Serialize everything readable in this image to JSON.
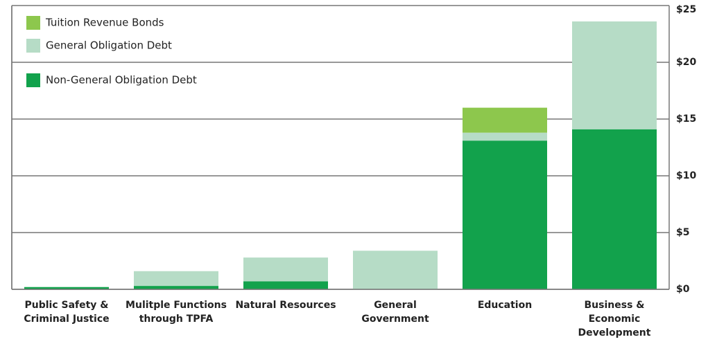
{
  "chart_data": {
    "type": "stacked_bar",
    "categories": [
      "Public Safety & Criminal Justice",
      "Mulitple Functions through TPFA",
      "Natural Resources",
      "General Government",
      "Education",
      "Business & Economic Development"
    ],
    "series": [
      {
        "name": "Non-General Obligation Debt",
        "color": "#12a24c",
        "values": [
          0.2,
          0.3,
          0.7,
          0,
          13.1,
          14.1
        ]
      },
      {
        "name": "General Obligation Debt",
        "color": "#b6dcc6",
        "values": [
          0,
          1.3,
          2.1,
          3.4,
          0.7,
          9.5
        ]
      },
      {
        "name": "Tuition Revenue Bonds",
        "color": "#8dc74d",
        "values": [
          0,
          0,
          0,
          0,
          2.2,
          0
        ]
      }
    ],
    "ylim": [
      0,
      25
    ],
    "yticks": [
      {
        "value": 0,
        "label": "$0"
      },
      {
        "value": 5,
        "label": "$5"
      },
      {
        "value": 10,
        "label": "$10"
      },
      {
        "value": 15,
        "label": "$15"
      },
      {
        "value": 20,
        "label": "$20"
      },
      {
        "value": 25,
        "label": "$25"
      }
    ],
    "grid": true
  }
}
